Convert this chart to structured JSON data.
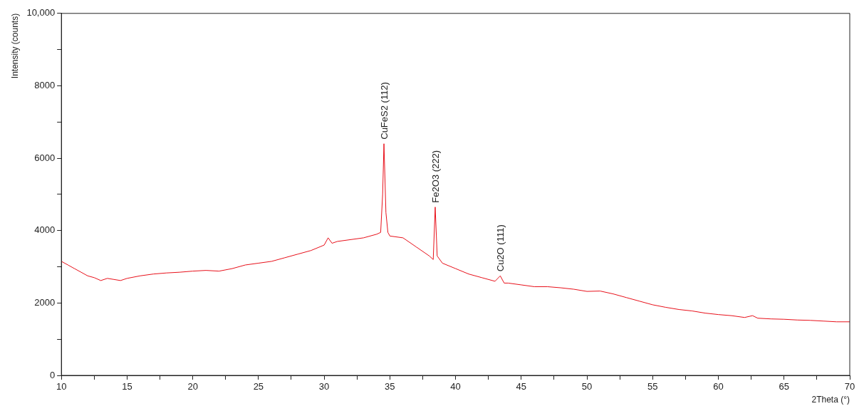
{
  "chart_data": {
    "type": "line",
    "xlabel": "2Theta (°)",
    "ylabel": "Intensity (counts)",
    "xlim": [
      10,
      70
    ],
    "ylim": [
      0,
      10000
    ],
    "xticks": [
      10,
      {
        "value": 12.5,
        "label": null
      },
      15,
      {
        "value": 17.5,
        "label": null
      },
      20,
      {
        "value": 22.5,
        "label": null
      },
      25,
      {
        "value": 27.5,
        "label": null
      },
      30,
      {
        "value": 32.5,
        "label": null
      },
      35,
      {
        "value": 37.5,
        "label": null
      },
      40,
      {
        "value": 42.5,
        "label": null
      },
      45,
      {
        "value": 47.5,
        "label": null
      },
      50,
      {
        "value": 52.5,
        "label": null
      },
      55,
      {
        "value": 57.5,
        "label": null
      },
      60,
      {
        "value": 62.5,
        "label": null
      },
      65,
      {
        "value": 67.5,
        "label": null
      },
      70
    ],
    "yticks": [
      0,
      {
        "value": 1000,
        "label": null
      },
      2000,
      {
        "value": 3000,
        "label": null
      },
      4000,
      {
        "value": 5000,
        "label": null
      },
      6000,
      {
        "value": 7000,
        "label": null
      },
      8000,
      {
        "value": 9000,
        "label": null
      },
      {
        "value": 10000,
        "label": "10,000"
      }
    ],
    "grid": false,
    "legend": false,
    "marker": "none",
    "line_style": "solid",
    "series": [
      {
        "color": "#e8101a",
        "x": [
          10,
          10.5,
          11,
          11.5,
          12,
          12.5,
          13,
          13.5,
          14,
          14.5,
          15,
          16,
          17,
          18,
          19,
          20,
          21,
          22,
          23,
          24,
          25,
          26,
          27,
          28,
          29,
          30,
          30.3,
          30.6,
          31,
          32,
          33,
          34,
          34.3,
          34.45,
          34.55,
          34.7,
          34.85,
          35,
          36,
          37,
          38,
          38.3,
          38.45,
          38.6,
          39,
          40,
          41,
          42,
          43,
          43.4,
          43.7,
          44,
          45,
          46,
          47,
          48,
          49,
          50,
          51,
          52,
          53,
          54,
          55,
          56,
          57,
          58,
          59,
          60,
          61,
          62,
          62.6,
          63,
          64,
          65,
          66,
          67,
          68,
          69,
          70
        ],
        "values": [
          3150,
          3050,
          2950,
          2850,
          2750,
          2700,
          2620,
          2680,
          2650,
          2620,
          2680,
          2750,
          2800,
          2830,
          2850,
          2880,
          2900,
          2880,
          2950,
          3050,
          3100,
          3150,
          3250,
          3350,
          3450,
          3600,
          3800,
          3650,
          3700,
          3750,
          3800,
          3900,
          3950,
          5000,
          6400,
          4500,
          3950,
          3850,
          3800,
          3550,
          3300,
          3200,
          4650,
          3300,
          3100,
          2950,
          2800,
          2700,
          2600,
          2750,
          2550,
          2550,
          2500,
          2450,
          2450,
          2420,
          2380,
          2320,
          2330,
          2250,
          2150,
          2050,
          1950,
          1880,
          1820,
          1780,
          1720,
          1680,
          1650,
          1600,
          1650,
          1580,
          1560,
          1550,
          1530,
          1520,
          1500,
          1480,
          1480
        ]
      }
    ],
    "annotations": [
      {
        "text": "CuFeS2 (112)",
        "x": 34.55,
        "y": 6400
      },
      {
        "text": "Fe2O3 (222)",
        "x": 38.45,
        "y": 4650
      },
      {
        "text": "Cu2O (111)",
        "x": 43.4,
        "y": 2750
      }
    ]
  }
}
